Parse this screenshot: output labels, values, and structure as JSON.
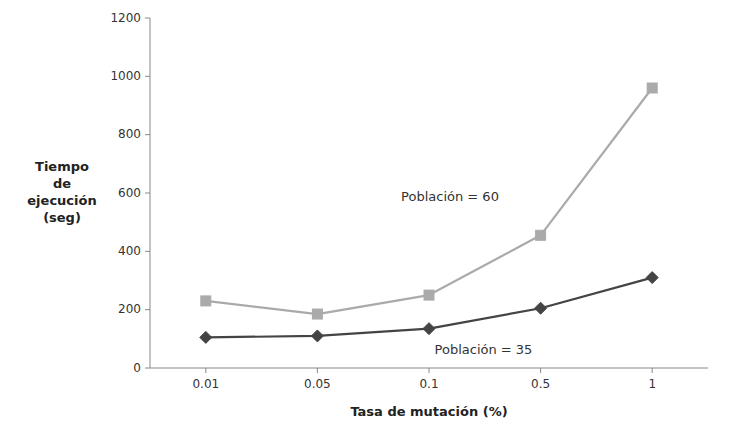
{
  "chart_data": {
    "type": "line",
    "xlabel": "Tasa de mutación (%)",
    "ylabel": "Tiempo\nde\nejecución\n(seg)",
    "categories": [
      "0.01",
      "0.05",
      "0.1",
      "0.5",
      "1"
    ],
    "series": [
      {
        "name": "Población = 60",
        "color": "#AAAAAA",
        "marker": "square",
        "values": [
          230,
          185,
          250,
          455,
          960
        ]
      },
      {
        "name": "Población = 35",
        "color": "#444444",
        "marker": "diamond",
        "values": [
          105,
          110,
          135,
          205,
          310
        ]
      }
    ],
    "ylim": [
      0,
      1200
    ],
    "yticks": [
      0,
      200,
      400,
      600,
      800,
      1000,
      1200
    ],
    "grid": false
  }
}
